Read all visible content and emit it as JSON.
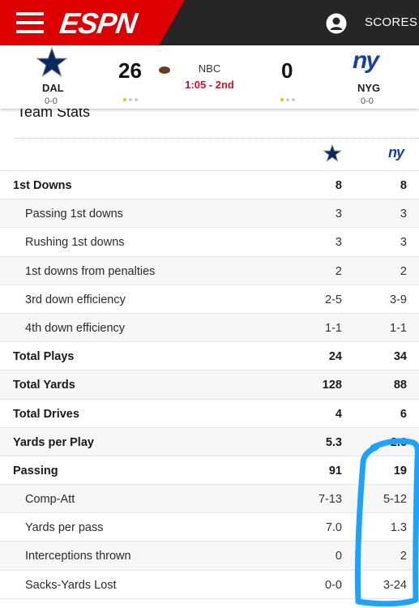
{
  "header": {
    "logo_text": "ESPN",
    "scores_label": "SCORES",
    "menu_icon": "hamburger-menu-icon",
    "user_icon": "user-profile-icon"
  },
  "game": {
    "network": "NBC",
    "clock": "1:05 - 2nd",
    "away": {
      "abbr": "DAL",
      "record": "0-0",
      "score": "26",
      "logo": "dallas-star-logo"
    },
    "home": {
      "abbr": "NYG",
      "record": "0-0",
      "score": "0",
      "logo_text": "ny",
      "logo": "giants-ny-logo"
    }
  },
  "team_stats": {
    "title": "Team Stats",
    "rows": [
      {
        "label": "1st Downs",
        "dal": "8",
        "nyg": "8",
        "kind": "main"
      },
      {
        "label": "Passing 1st downs",
        "dal": "3",
        "nyg": "3",
        "kind": "sub"
      },
      {
        "label": "Rushing 1st downs",
        "dal": "3",
        "nyg": "3",
        "kind": "sub"
      },
      {
        "label": "1st downs from penalties",
        "dal": "2",
        "nyg": "2",
        "kind": "sub"
      },
      {
        "label": "3rd down efficiency",
        "dal": "2-5",
        "nyg": "3-9",
        "kind": "sub"
      },
      {
        "label": "4th down efficiency",
        "dal": "1-1",
        "nyg": "1-1",
        "kind": "sub"
      },
      {
        "label": "Total Plays",
        "dal": "24",
        "nyg": "34",
        "kind": "main"
      },
      {
        "label": "Total Yards",
        "dal": "128",
        "nyg": "88",
        "kind": "main"
      },
      {
        "label": "Total Drives",
        "dal": "4",
        "nyg": "6",
        "kind": "main"
      },
      {
        "label": "Yards per Play",
        "dal": "5.3",
        "nyg": "2.6",
        "kind": "main"
      },
      {
        "label": "Passing",
        "dal": "91",
        "nyg": "19",
        "kind": "main"
      },
      {
        "label": "Comp-Att",
        "dal": "7-13",
        "nyg": "5-12",
        "kind": "sub"
      },
      {
        "label": "Yards per pass",
        "dal": "7.0",
        "nyg": "1.3",
        "kind": "sub"
      },
      {
        "label": "Interceptions thrown",
        "dal": "0",
        "nyg": "2",
        "kind": "sub"
      },
      {
        "label": "Sacks-Yards Lost",
        "dal": "0-0",
        "nyg": "3-24",
        "kind": "sub"
      }
    ]
  },
  "colors": {
    "espn_red": "#dd0000",
    "header_dark": "#262626",
    "clock_red": "#c8102e",
    "giants_blue": "#1a3fa8",
    "cowboys_navy": "#0b2a5b",
    "annotation_blue": "#1aa3ff"
  }
}
